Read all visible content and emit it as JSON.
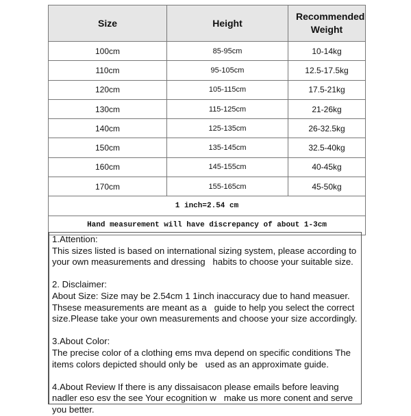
{
  "headers": [
    "Size",
    "Height",
    "Recommended Weight"
  ],
  "rows": [
    [
      "100cm",
      "85-95cm",
      "10-14kg"
    ],
    [
      "110cm",
      "95-105cm",
      "12.5-17.5kg"
    ],
    [
      "120cm",
      "105-115cm",
      "17.5-21kg"
    ],
    [
      "130cm",
      "115-125cm",
      "21-26kg"
    ],
    [
      "140cm",
      "125-135cm",
      "26-32.5kg"
    ],
    [
      "150cm",
      "135-145cm",
      "32.5-40kg"
    ],
    [
      "160cm",
      "145-155cm",
      "40-45kg"
    ],
    [
      "170cm",
      "155-165cm",
      "45-50kg"
    ]
  ],
  "conversion": "1 inch=2.54 cm",
  "discrepancy": "Hand measurement will have discrepancy of about 1-3cm",
  "notes": [
    {
      "title": "1.Attention:",
      "body": "This sizes listed is based on international sizing system, please according to your own measurements and dressing   habits to choose your suitable size."
    },
    {
      "title": "2. Disclaimer:",
      "body": "About Size: Size may be 2.54cm 1 1inch inaccuracy due to hand measuer. Thsese measurements are meant as a   guide to help you select the correct size.Please take your own measurements and choose your size accordingly."
    },
    {
      "title": "3.About Color:",
      "body": "The precise color of a clothing ems mva depend on specific conditions The items colors depicted should only be   used as an approximate guide."
    },
    {
      "title": "",
      "body": "4.About Review If there is any dissaisacon please emails before leaving nadler eso esv the see Your ecognition w   make us more conent and serve you better."
    }
  ]
}
